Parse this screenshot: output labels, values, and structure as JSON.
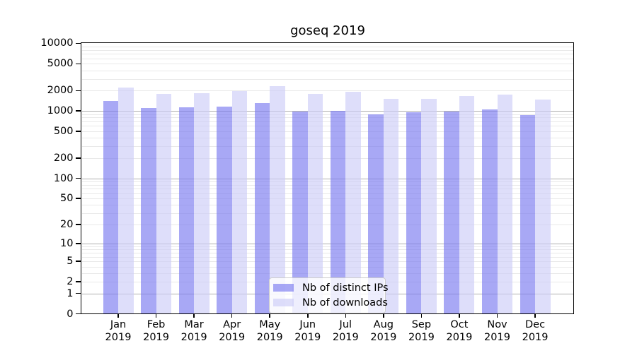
{
  "chart_data": {
    "type": "bar",
    "title": "goseq 2019",
    "categories": [
      "Jan 2019",
      "Feb 2019",
      "Mar 2019",
      "Apr 2019",
      "May 2019",
      "Jun 2019",
      "Jul 2019",
      "Aug 2019",
      "Sep 2019",
      "Oct 2019",
      "Nov 2019",
      "Dec 2019"
    ],
    "series": [
      {
        "name": "Nb of distinct IPs",
        "color": "#7979f0",
        "values": [
          1400,
          1120,
          1140,
          1170,
          1310,
          990,
          1010,
          890,
          965,
          990,
          1050,
          880
        ]
      },
      {
        "name": "Nb of downloads",
        "color": "#ccccf7",
        "values": [
          2220,
          1800,
          1830,
          1950,
          2330,
          1800,
          1910,
          1510,
          1510,
          1660,
          1730,
          1470
        ]
      }
    ],
    "bar_alpha": 0.65,
    "y_scale": "log1p",
    "ylim": [
      0,
      10000
    ],
    "yticks": [
      10000,
      5000,
      2000,
      1000,
      500,
      200,
      100,
      50,
      20,
      10,
      5,
      2,
      1,
      0
    ],
    "grid": "horizontal major+minor",
    "major_grid_color": "#aeaeae",
    "minor_grid_color": "#e9e9e9",
    "legend_position": "lower center inside"
  }
}
